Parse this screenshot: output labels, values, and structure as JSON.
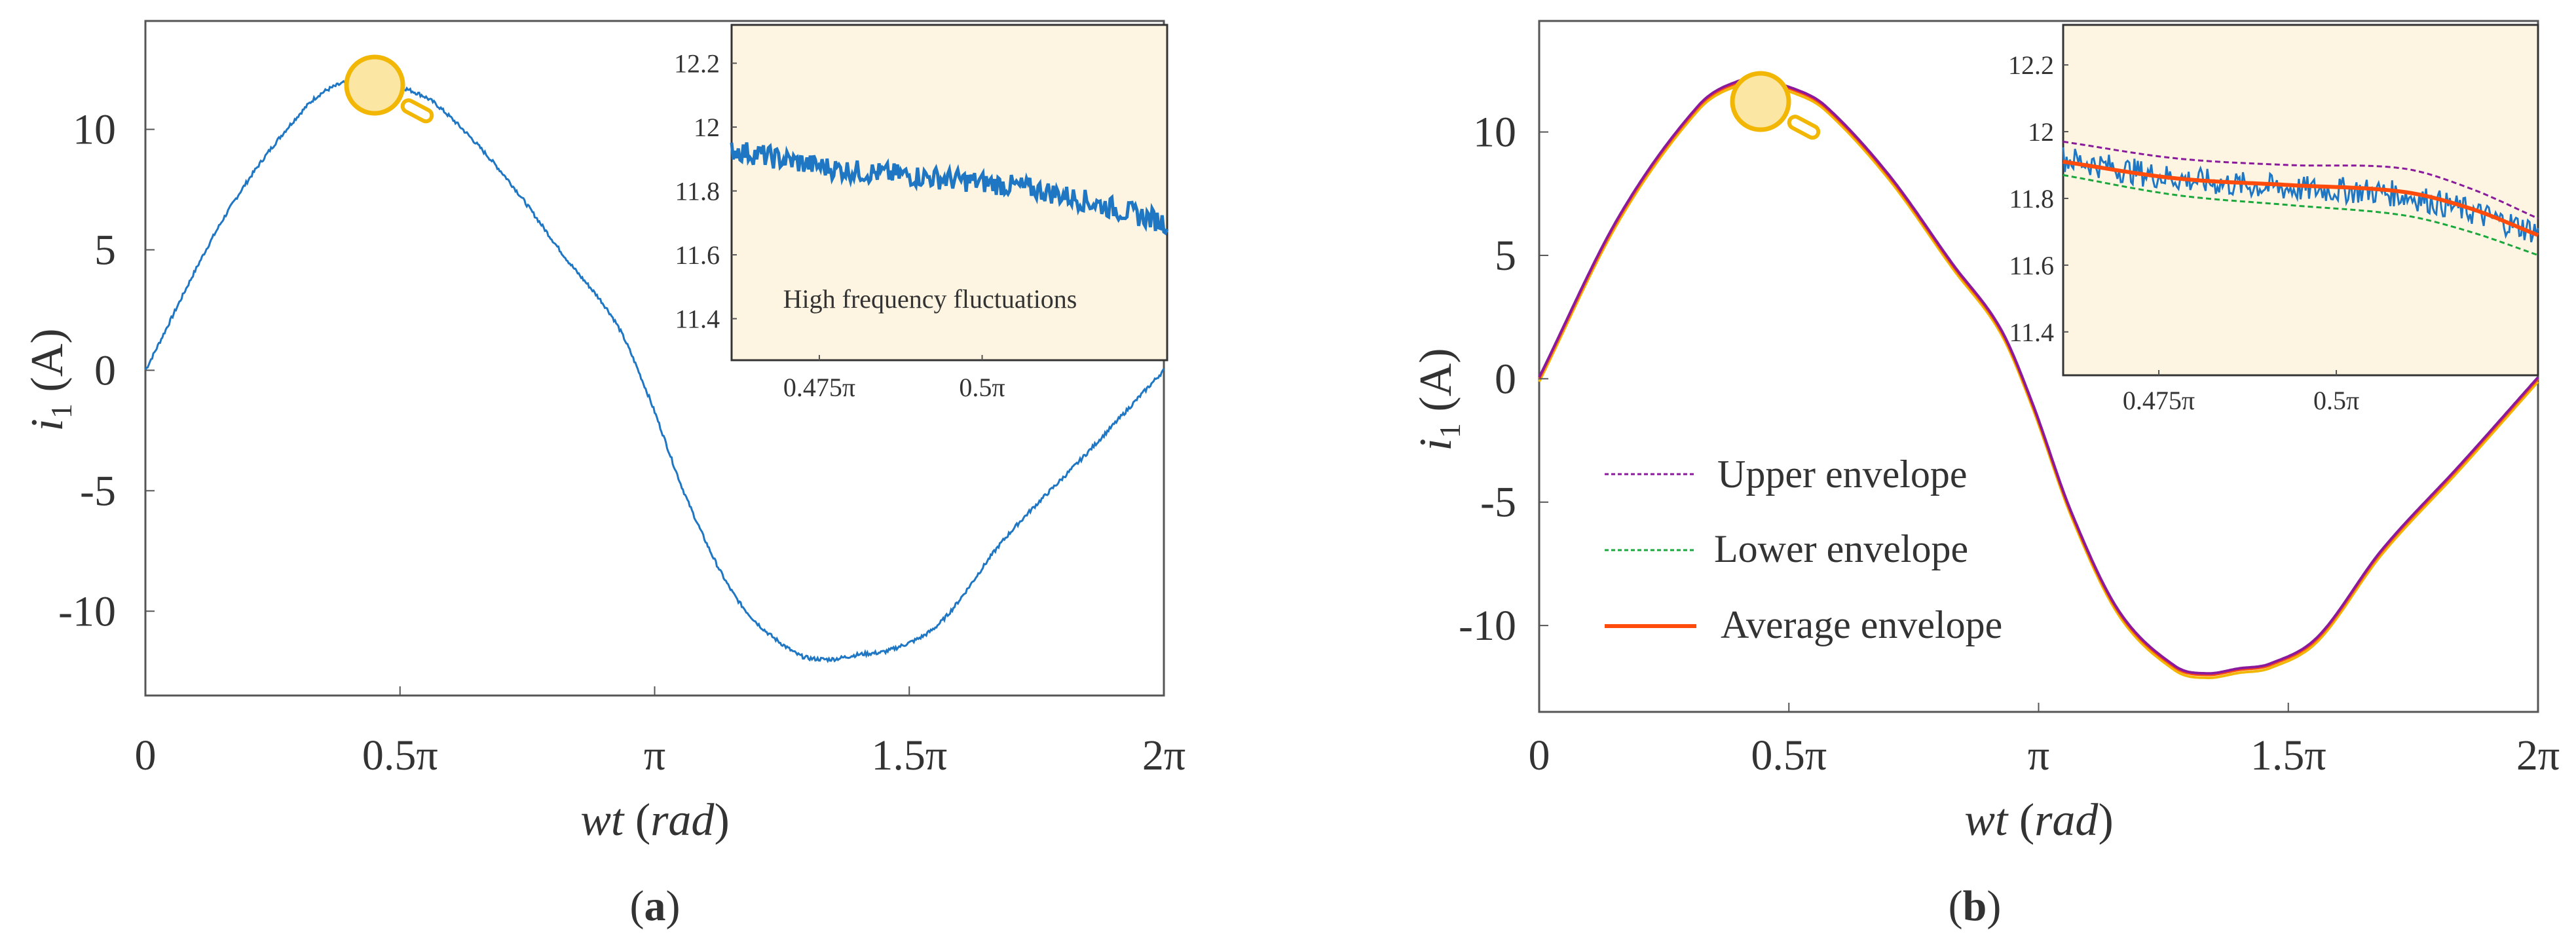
{
  "colors": {
    "signal": "#1f77c4",
    "inset_bg": "#fdf5e1",
    "axis": "#555555",
    "magnifier": "#f2b705",
    "magnifier_fill": "#fbe6a4",
    "upper": "#8a1a9b",
    "lower": "#1aa83c",
    "average": "#ff4c0c",
    "text": "#333333"
  },
  "chart_data": [
    {
      "panel": "a",
      "type": "line",
      "panel_label": "(a)",
      "panel_label_letter": "a",
      "xlabel_italic": "wt",
      "xlabel_unit": "(rad)",
      "ylabel_var": "i",
      "ylabel_sub": "1",
      "ylabel_unit": " (A)",
      "xlim": [
        0,
        6.2832
      ],
      "ylim": [
        -13.5,
        14.5
      ],
      "xticks": [
        0,
        1.5708,
        3.1416,
        4.7124,
        6.2832
      ],
      "xtick_labels": [
        "0",
        "0.5π",
        "π",
        "1.5π",
        "2π"
      ],
      "yticks": [
        10,
        5,
        0,
        -5,
        -10
      ],
      "ytick_labels": [
        "10",
        "5",
        "0",
        "-5",
        "-10"
      ],
      "series": [
        {
          "name": "i1",
          "x": [
            0,
            0.5,
            1.0,
            1.25,
            1.4,
            1.6,
            1.8,
            2.2,
            2.6,
            2.9,
            3.1,
            3.35,
            3.65,
            4.0,
            4.2,
            4.4,
            4.6,
            4.9,
            5.3,
            5.8,
            6.2832
          ],
          "y": [
            0,
            6.5,
            11.0,
            12.0,
            12.0,
            11.7,
            11.0,
            8.2,
            4.6,
            2.0,
            -1.0,
            -5.5,
            -9.5,
            -11.7,
            -12.0,
            -11.8,
            -11.6,
            -10.5,
            -7.0,
            -3.5,
            0
          ]
        }
      ],
      "inset": {
        "xlim": [
          1.45,
          1.66
        ],
        "ylim": [
          11.27,
          12.32
        ],
        "xticks": [
          1.4923,
          1.5708
        ],
        "xtick_labels": [
          "0.475π",
          "0.5π"
        ],
        "yticks": [
          12.2,
          12.0,
          11.8,
          11.6,
          11.4
        ],
        "ytick_labels": [
          "12.2",
          "12",
          "11.8",
          "11.6",
          "11.4"
        ],
        "annotation": "High frequency fluctuations",
        "trend_x": [
          1.45,
          1.5,
          1.55,
          1.6,
          1.66
        ],
        "trend_y": [
          11.93,
          11.87,
          11.84,
          11.8,
          11.7
        ],
        "noise_amplitude": 0.035
      }
    },
    {
      "panel": "b",
      "type": "line",
      "panel_label": "(b)",
      "panel_label_letter": "b",
      "xlabel_italic": "wt",
      "xlabel_unit": "(rad)",
      "ylabel_var": "i",
      "ylabel_sub": "1",
      "ylabel_unit": " (A)",
      "xlim": [
        0,
        6.2832
      ],
      "ylim": [
        -13.5,
        14.5
      ],
      "xticks": [
        0,
        1.5708,
        3.1416,
        4.7124,
        6.2832
      ],
      "xtick_labels": [
        "0",
        "0.5π",
        "π",
        "1.5π",
        "2π"
      ],
      "yticks": [
        10,
        5,
        0,
        -5,
        -10
      ],
      "ytick_labels": [
        "10",
        "5",
        "0",
        "-5",
        "-10"
      ],
      "legend": [
        {
          "name": "Upper envelope",
          "style": "dotted",
          "color_key": "upper"
        },
        {
          "name": "Lower envelope",
          "style": "dotted",
          "color_key": "lower"
        },
        {
          "name": "Average envelope",
          "style": "solid",
          "color_key": "average"
        }
      ],
      "series": [
        {
          "name": "Average envelope",
          "x": [
            0,
            0.5,
            1.0,
            1.25,
            1.4,
            1.6,
            1.8,
            2.2,
            2.6,
            2.9,
            3.1,
            3.35,
            3.65,
            4.0,
            4.2,
            4.4,
            4.6,
            4.9,
            5.3,
            5.8,
            6.2832
          ],
          "y": [
            0,
            6.5,
            11.0,
            12.0,
            12.0,
            11.7,
            11.0,
            8.2,
            4.6,
            2.0,
            -1.0,
            -5.5,
            -9.5,
            -11.7,
            -12.0,
            -11.8,
            -11.6,
            -10.5,
            -7.0,
            -3.5,
            0
          ]
        }
      ],
      "inset": {
        "xlim": [
          1.45,
          1.66
        ],
        "ylim": [
          11.27,
          12.32
        ],
        "xticks": [
          1.4923,
          1.5708
        ],
        "xtick_labels": [
          "0.475π",
          "0.5π"
        ],
        "yticks": [
          12.2,
          12.0,
          11.8,
          11.6,
          11.4
        ],
        "ytick_labels": [
          "12.2",
          "12",
          "11.8",
          "11.6",
          "11.4"
        ],
        "signal_trend_x": [
          1.45,
          1.5,
          1.55,
          1.6,
          1.66
        ],
        "signal_trend_y": [
          11.92,
          11.86,
          11.83,
          11.81,
          11.7
        ],
        "noise_amplitude": 0.04,
        "upper_x": [
          1.45,
          1.5,
          1.55,
          1.6,
          1.63,
          1.66
        ],
        "upper_y": [
          11.97,
          11.92,
          11.9,
          11.89,
          11.83,
          11.74
        ],
        "average_x": [
          1.45,
          1.5,
          1.55,
          1.6,
          1.63,
          1.66
        ],
        "average_y": [
          11.91,
          11.86,
          11.84,
          11.82,
          11.77,
          11.69
        ],
        "lower_x": [
          1.45,
          1.5,
          1.55,
          1.6,
          1.63,
          1.66
        ],
        "lower_y": [
          11.87,
          11.81,
          11.78,
          11.75,
          11.7,
          11.63
        ]
      }
    }
  ]
}
